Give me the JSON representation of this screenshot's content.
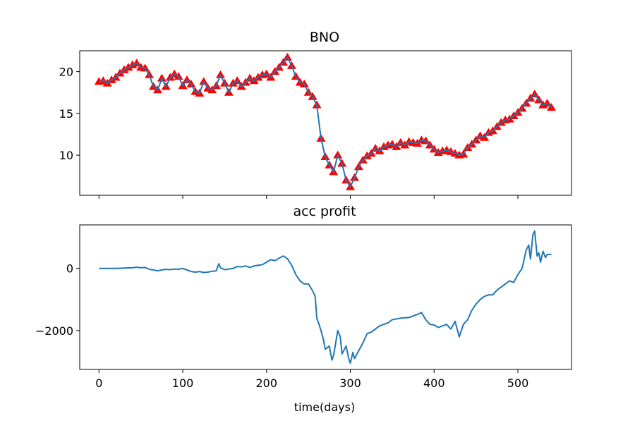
{
  "chart_data": [
    {
      "type": "line",
      "title": "BNO",
      "xlabel": "",
      "ylabel": "",
      "xlim": [
        -23,
        564
      ],
      "ylim": [
        5.2,
        22.5
      ],
      "x_ticks": [
        0,
        100,
        200,
        300,
        400,
        500
      ],
      "x_tick_labels_shown": false,
      "y_ticks": [
        10,
        15,
        20
      ],
      "y_tick_labels": [
        "10",
        "15",
        "20"
      ],
      "grid": false,
      "colors": {
        "line": "#1f77b4",
        "marker": "#ff0000"
      },
      "markers": "red triangles along the price series",
      "series": [
        {
          "x": [
            0,
            5,
            10,
            15,
            20,
            25,
            30,
            35,
            40,
            45,
            50,
            55,
            60,
            65,
            70,
            75,
            80,
            85,
            90,
            95,
            100,
            105,
            110,
            115,
            120,
            125,
            130,
            135,
            140,
            145,
            150,
            155,
            160,
            165,
            170,
            175,
            180,
            185,
            190,
            195,
            200,
            205,
            210,
            215,
            220,
            225,
            230,
            235,
            240,
            245,
            250,
            255,
            260,
            265,
            270,
            275,
            280,
            285,
            290,
            295,
            300,
            305,
            310,
            315,
            320,
            325,
            330,
            335,
            340,
            345,
            350,
            355,
            360,
            365,
            370,
            375,
            380,
            385,
            390,
            395,
            400,
            405,
            410,
            415,
            420,
            425,
            430,
            435,
            440,
            445,
            450,
            455,
            460,
            465,
            470,
            475,
            480,
            485,
            490,
            495,
            500,
            505,
            510,
            515,
            520,
            525,
            530,
            535,
            540
          ],
          "y": [
            18.8,
            18.9,
            18.6,
            19.0,
            19.3,
            19.8,
            20.2,
            20.5,
            20.8,
            21.0,
            20.5,
            20.4,
            19.6,
            18.2,
            17.8,
            19.2,
            18.2,
            19.3,
            19.7,
            19.4,
            18.3,
            19.0,
            18.5,
            17.6,
            17.4,
            18.8,
            18.0,
            17.8,
            18.3,
            19.6,
            18.6,
            17.5,
            18.6,
            18.9,
            18.2,
            18.7,
            19.2,
            18.9,
            19.3,
            19.6,
            19.7,
            19.3,
            20.0,
            20.5,
            21.1,
            21.7,
            20.7,
            19.4,
            18.7,
            18.5,
            17.5,
            17.0,
            16.0,
            12.0,
            9.8,
            8.8,
            8.0,
            10.0,
            9.0,
            7.0,
            6.2,
            7.3,
            8.6,
            9.4,
            9.9,
            10.2,
            10.8,
            10.5,
            11.0,
            11.2,
            11.3,
            11.0,
            11.5,
            11.2,
            11.6,
            11.5,
            11.4,
            11.8,
            11.7,
            11.2,
            10.7,
            10.3,
            10.5,
            10.6,
            10.4,
            10.2,
            10.0,
            10.1,
            10.9,
            11.3,
            11.8,
            12.3,
            12.1,
            12.7,
            12.9,
            13.4,
            13.9,
            14.2,
            14.3,
            14.7,
            15.1,
            15.6,
            16.2,
            16.8,
            17.3,
            16.6,
            16.0,
            16.2,
            15.7
          ]
        }
      ]
    },
    {
      "type": "line",
      "title": "acc profit",
      "xlabel": "time(days)",
      "ylabel": "",
      "xlim": [
        -23,
        564
      ],
      "ylim": [
        -3250,
        1400
      ],
      "x_ticks": [
        0,
        100,
        200,
        300,
        400,
        500
      ],
      "x_tick_labels": [
        "0",
        "100",
        "200",
        "300",
        "400",
        "500"
      ],
      "y_ticks": [
        -2000,
        0
      ],
      "y_tick_labels": [
        "−2000",
        "0"
      ],
      "grid": false,
      "colors": {
        "line": "#1f77b4"
      },
      "series": [
        {
          "x": [
            0,
            10,
            20,
            30,
            40,
            45,
            50,
            55,
            60,
            65,
            70,
            75,
            80,
            85,
            90,
            95,
            100,
            105,
            110,
            115,
            120,
            125,
            130,
            135,
            140,
            143,
            145,
            150,
            155,
            160,
            165,
            170,
            175,
            180,
            185,
            190,
            195,
            200,
            205,
            210,
            215,
            220,
            225,
            230,
            235,
            240,
            245,
            250,
            255,
            258,
            260,
            262,
            265,
            268,
            270,
            275,
            278,
            280,
            285,
            288,
            290,
            293,
            295,
            298,
            300,
            303,
            305,
            310,
            315,
            320,
            325,
            330,
            335,
            340,
            345,
            350,
            360,
            370,
            380,
            385,
            390,
            395,
            400,
            405,
            410,
            415,
            420,
            425,
            430,
            435,
            440,
            445,
            450,
            455,
            460,
            465,
            470,
            475,
            480,
            485,
            490,
            495,
            500,
            505,
            510,
            513,
            515,
            518,
            520,
            523,
            525,
            527,
            530,
            533,
            535,
            540
          ],
          "y": [
            0,
            0,
            0,
            10,
            20,
            40,
            20,
            30,
            -30,
            -50,
            -80,
            -50,
            -30,
            -40,
            -20,
            -30,
            0,
            -50,
            -100,
            -120,
            -100,
            -130,
            -120,
            -90,
            -80,
            150,
            20,
            -40,
            -20,
            0,
            60,
            50,
            80,
            30,
            80,
            100,
            120,
            200,
            280,
            250,
            330,
            400,
            310,
            100,
            -200,
            -400,
            -500,
            -500,
            -720,
            -900,
            -1600,
            -1750,
            -2000,
            -2300,
            -2600,
            -2500,
            -2950,
            -2800,
            -2000,
            -2200,
            -2750,
            -2600,
            -2500,
            -2900,
            -3050,
            -2700,
            -2900,
            -2650,
            -2400,
            -2100,
            -2050,
            -1950,
            -1850,
            -1800,
            -1750,
            -1650,
            -1600,
            -1580,
            -1480,
            -1420,
            -1650,
            -1800,
            -1820,
            -1900,
            -1850,
            -1800,
            -1950,
            -1700,
            -2200,
            -1800,
            -1650,
            -1350,
            -1150,
            -1000,
            -900,
            -850,
            -850,
            -700,
            -600,
            -500,
            -400,
            -450,
            -200,
            0,
            600,
            750,
            300,
            1100,
            1200,
            400,
            500,
            200,
            550,
            350,
            450,
            450
          ]
        }
      ]
    }
  ]
}
